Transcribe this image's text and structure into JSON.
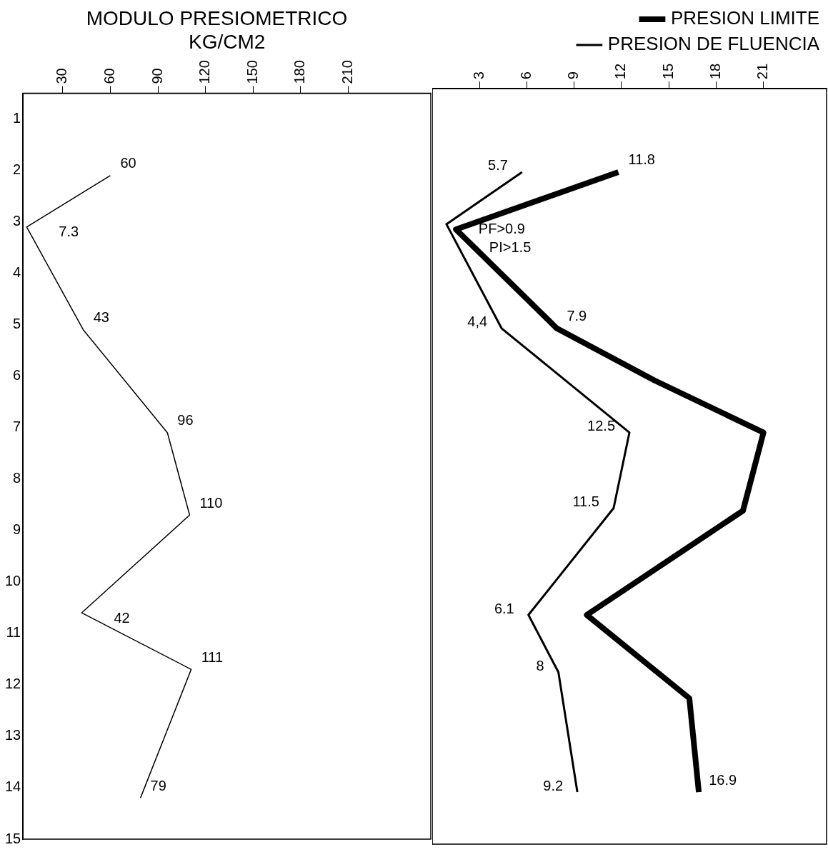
{
  "chart_data": [
    {
      "type": "line",
      "orientation": "horizontal",
      "title": "MODULO PRESIOMETRICO",
      "xlabel": "KG/CM2",
      "xlim": [
        5,
        262
      ],
      "xticks": [
        30,
        60,
        90,
        120,
        150,
        180,
        210
      ],
      "ylim": [
        15,
        0.5
      ],
      "yticks": [
        1,
        2,
        3,
        4,
        5,
        6,
        7,
        8,
        9,
        10,
        11,
        12,
        13,
        14,
        15
      ],
      "marker": "none",
      "series": [
        {
          "color": "#000000",
          "x": [
            2.1,
            3.1,
            5.1,
            7.1,
            8.7,
            10.6,
            11.7,
            14.2
          ],
          "values": [
            60,
            7.3,
            43,
            96,
            110,
            42,
            111,
            79
          ],
          "value_labels": [
            "60",
            "7.3",
            "43",
            "96",
            "110",
            "42",
            "111",
            "79"
          ]
        }
      ]
    },
    {
      "type": "line",
      "orientation": "horizontal",
      "legend": "top right",
      "xlim": [
        0,
        25
      ],
      "xticks": [
        3,
        6,
        9,
        12,
        15,
        18,
        21
      ],
      "ylim": [
        15,
        0.5
      ],
      "yticks": [
        1,
        2,
        3,
        4,
        5,
        6,
        7,
        8,
        9,
        10,
        11,
        12,
        13,
        14,
        15
      ],
      "tick_labels": "x",
      "marker": "none",
      "series": [
        {
          "name": "PRESION LIMITE",
          "color": "#000000",
          "x": [
            2.1,
            3.2,
            5.1,
            6.1,
            7.1,
            8.6,
            10.6,
            12.2,
            14.0
          ],
          "values": [
            11.8,
            1.5,
            7.9,
            14.1,
            21,
            19.7,
            9.8,
            16.3,
            16.9
          ],
          "value_labels": [
            "11.8",
            "PI>1.5",
            "7.9",
            null,
            null,
            null,
            null,
            null,
            "16.9"
          ]
        },
        {
          "name": "PRESION DE FLUENCIA",
          "color": "#000000",
          "x": [
            2.1,
            3.1,
            5.1,
            7.1,
            8.55,
            10.6,
            11.7,
            14.0
          ],
          "values": [
            5.7,
            0.9,
            4.4,
            12.5,
            11.5,
            6.1,
            8,
            9.2
          ],
          "value_labels": [
            "5.7",
            "PF>0.9",
            "4,4",
            "12.5",
            "11.5",
            "6.1",
            "8",
            "9.2"
          ]
        }
      ]
    }
  ]
}
